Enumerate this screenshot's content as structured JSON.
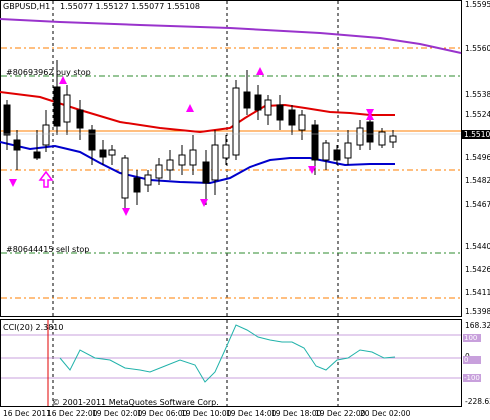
{
  "window": {
    "symbol_label": "GBPUSD,H1",
    "ohlc": "1.55077 1.55127 1.55077 1.55108"
  },
  "main_chart": {
    "price_axis": [
      "1.55950",
      "1.55605",
      "1.55385",
      "1.55240",
      "1.55108",
      "1.54965",
      "1.54820",
      "1.54675",
      "1.54400",
      "1.54260",
      "1.54115",
      "1.53980"
    ],
    "current_price": "1.55108",
    "orders": [
      {
        "label": "#80693962 buy stop",
        "color": "#1a7a1a"
      },
      {
        "label": "#80644415 sell stop",
        "color": "#1a7a1a"
      }
    ],
    "colors": {
      "bull_candle": "#ffffff",
      "bear_candle": "#000000",
      "upper_band": "#e00000",
      "lower_band": "#0000cc",
      "slow_ma": "#9933cc",
      "arrows": "#ff00ff",
      "order_lines": "#2e8b2e",
      "levels": "#ff7f00"
    }
  },
  "indicator": {
    "label": "CCI(20) 2.3810",
    "axis": [
      "168.323",
      "100",
      "0",
      "-100",
      "-228.625"
    ],
    "level_values": [
      "100",
      "0",
      "-100"
    ],
    "colors": {
      "line": "#20b2aa",
      "level": "#c8a0dc"
    }
  },
  "footer": {
    "copyright": "© 2001-2011 MetaQuotes Software Corp."
  },
  "time_axis": [
    "16 Dec 2011",
    "16 Dec 22:00",
    "19 Dec 02:00",
    "19 Dec 06:00",
    "19 Dec 10:00",
    "19 Dec 14:00",
    "19 Dec 18:00",
    "19 Dec 22:00",
    "20 Dec 02:00"
  ]
}
